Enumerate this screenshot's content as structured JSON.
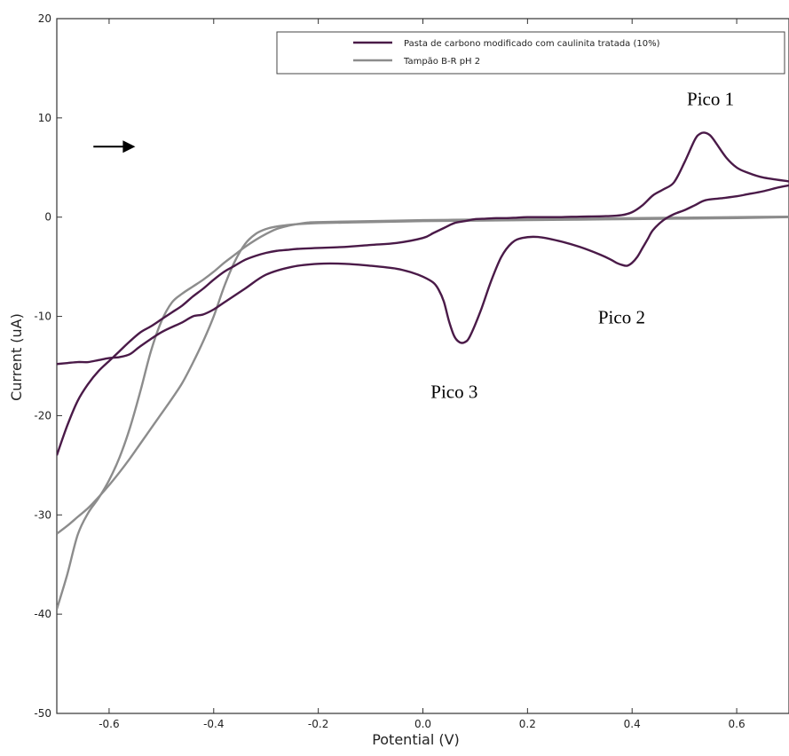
{
  "chart_data": {
    "type": "line",
    "title": "",
    "xlabel": "Potential (V)",
    "ylabel": "Current (uA)",
    "xlim": [
      -0.7,
      0.7
    ],
    "ylim": [
      -50,
      20
    ],
    "xticks": [
      -0.6,
      -0.4,
      -0.2,
      0.0,
      0.2,
      0.4,
      0.6
    ],
    "xtick_labels": [
      "-0.6",
      "-0.4",
      "-0.2",
      "0.0",
      "0.2",
      "0.4",
      "0.6"
    ],
    "yticks": [
      -50,
      -40,
      -30,
      -20,
      -10,
      0,
      10,
      20
    ],
    "ytick_labels": [
      "-50",
      "-40",
      "-30",
      "-20",
      "-10",
      "0",
      "10",
      "20"
    ],
    "grid": false,
    "legend_position": "top-right",
    "series": [
      {
        "name": "Pasta de carbono modificado com caulinita tratada (10%)",
        "color": "#4a1a48",
        "segments": [
          {
            "x": [
              -0.7,
              -0.68,
              -0.66,
              -0.64,
              -0.62,
              -0.6,
              -0.58,
              -0.56,
              -0.54,
              -0.52,
              -0.5,
              -0.48,
              -0.46,
              -0.44,
              -0.42,
              -0.4,
              -0.38,
              -0.36,
              -0.34,
              -0.32,
              -0.3,
              -0.28,
              -0.26,
              -0.24,
              -0.2,
              -0.15,
              -0.1,
              -0.05,
              0.0,
              0.02,
              0.04,
              0.06,
              0.08,
              0.1,
              0.12,
              0.14,
              0.16,
              0.18,
              0.2,
              0.25,
              0.3,
              0.35,
              0.38,
              0.4,
              0.42,
              0.44,
              0.46,
              0.48,
              0.5,
              0.52,
              0.53,
              0.54,
              0.55,
              0.56,
              0.58,
              0.6,
              0.62,
              0.65,
              0.7
            ],
            "y": [
              -24,
              -21,
              -18.5,
              -16.8,
              -15.5,
              -14.5,
              -13.5,
              -12.5,
              -11.6,
              -11.0,
              -10.3,
              -9.6,
              -8.9,
              -8.0,
              -7.2,
              -6.3,
              -5.5,
              -4.9,
              -4.3,
              -3.9,
              -3.6,
              -3.4,
              -3.3,
              -3.2,
              -3.1,
              -3.0,
              -2.8,
              -2.6,
              -2.1,
              -1.6,
              -1.1,
              -0.6,
              -0.4,
              -0.2,
              -0.15,
              -0.1,
              -0.1,
              -0.05,
              0.0,
              0.0,
              0.05,
              0.1,
              0.2,
              0.5,
              1.2,
              2.2,
              2.8,
              3.5,
              5.5,
              7.8,
              8.4,
              8.5,
              8.2,
              7.5,
              6.0,
              5.0,
              4.5,
              4.0,
              3.6
            ]
          },
          {
            "x": [
              0.7,
              0.68,
              0.65,
              0.62,
              0.6,
              0.57,
              0.54,
              0.52,
              0.5,
              0.48,
              0.46,
              0.44,
              0.43,
              0.42,
              0.41,
              0.4,
              0.39,
              0.38,
              0.37,
              0.36,
              0.34,
              0.3,
              0.26,
              0.22,
              0.19,
              0.17,
              0.15,
              0.13,
              0.11,
              0.09,
              0.08,
              0.07,
              0.06,
              0.05,
              0.04,
              0.03,
              0.02,
              0.0,
              -0.02,
              -0.05,
              -0.1,
              -0.15,
              -0.2,
              -0.25,
              -0.3,
              -0.34,
              -0.38,
              -0.4,
              -0.42,
              -0.44,
              -0.46,
              -0.5,
              -0.54,
              -0.56,
              -0.58,
              -0.6,
              -0.62,
              -0.64,
              -0.66,
              -0.68,
              -0.7
            ],
            "y": [
              3.2,
              3.0,
              2.6,
              2.3,
              2.1,
              1.9,
              1.7,
              1.2,
              0.7,
              0.3,
              -0.3,
              -1.3,
              -2.2,
              -3.1,
              -4.0,
              -4.6,
              -4.9,
              -4.8,
              -4.6,
              -4.3,
              -3.8,
              -3.0,
              -2.4,
              -2.0,
              -2.1,
              -2.6,
              -4.0,
              -6.5,
              -9.5,
              -12.0,
              -12.6,
              -12.6,
              -12.0,
              -10.5,
              -8.5,
              -7.3,
              -6.6,
              -6.0,
              -5.6,
              -5.2,
              -4.9,
              -4.7,
              -4.7,
              -5.0,
              -5.8,
              -7.2,
              -8.6,
              -9.3,
              -9.8,
              -10.0,
              -10.6,
              -11.6,
              -13.0,
              -13.8,
              -14.1,
              -14.2,
              -14.4,
              -14.6,
              -14.6,
              -14.7,
              -14.8
            ]
          }
        ]
      },
      {
        "name": "Tampão B-R pH 2",
        "color": "#8c8c8c",
        "segments": [
          {
            "x": [
              -0.7,
              -0.68,
              -0.66,
              -0.64,
              -0.62,
              -0.6,
              -0.58,
              -0.56,
              -0.54,
              -0.52,
              -0.5,
              -0.48,
              -0.46,
              -0.44,
              -0.42,
              -0.4,
              -0.38,
              -0.36,
              -0.34,
              -0.32,
              -0.3,
              -0.28,
              -0.26,
              -0.24,
              -0.22,
              -0.2,
              -0.1,
              0.0,
              0.1,
              0.2,
              0.3,
              0.4,
              0.5,
              0.6,
              0.7
            ],
            "y": [
              -39.5,
              -36,
              -32,
              -29.8,
              -28.3,
              -26.5,
              -24.2,
              -21.2,
              -17.5,
              -13.5,
              -10.5,
              -8.6,
              -7.7,
              -7.0,
              -6.3,
              -5.5,
              -4.6,
              -3.8,
              -3.0,
              -2.3,
              -1.7,
              -1.2,
              -0.9,
              -0.7,
              -0.55,
              -0.5,
              -0.4,
              -0.3,
              -0.25,
              -0.2,
              -0.15,
              -0.1,
              -0.05,
              0.0,
              0.05
            ]
          },
          {
            "x": [
              0.7,
              0.6,
              0.5,
              0.4,
              0.3,
              0.2,
              0.1,
              0.0,
              -0.1,
              -0.2,
              -0.22,
              -0.24,
              -0.26,
              -0.28,
              -0.3,
              -0.32,
              -0.34,
              -0.36,
              -0.38,
              -0.4,
              -0.42,
              -0.44,
              -0.46,
              -0.48,
              -0.5,
              -0.52,
              -0.54,
              -0.56,
              -0.58,
              -0.6,
              -0.62,
              -0.64,
              -0.66,
              -0.68,
              -0.7
            ],
            "y": [
              0.0,
              -0.1,
              -0.15,
              -0.2,
              -0.25,
              -0.3,
              -0.35,
              -0.4,
              -0.5,
              -0.6,
              -0.65,
              -0.7,
              -0.8,
              -0.95,
              -1.2,
              -1.7,
              -2.7,
              -4.5,
              -7.0,
              -10.0,
              -12.5,
              -14.7,
              -16.7,
              -18.3,
              -19.8,
              -21.3,
              -22.8,
              -24.3,
              -25.7,
              -27.0,
              -28.2,
              -29.3,
              -30.2,
              -31.1,
              -31.9
            ]
          }
        ]
      }
    ],
    "annotations": [
      {
        "text": "Pico 1",
        "x": 0.55,
        "y": 11.3
      },
      {
        "text": "Pico 2",
        "x": 0.38,
        "y": -10.7
      },
      {
        "text": "Pico 3",
        "x": 0.06,
        "y": -18.2
      }
    ],
    "scan_direction_arrow": {
      "x_start": -0.63,
      "x_end": -0.55,
      "y": 7.1
    }
  }
}
